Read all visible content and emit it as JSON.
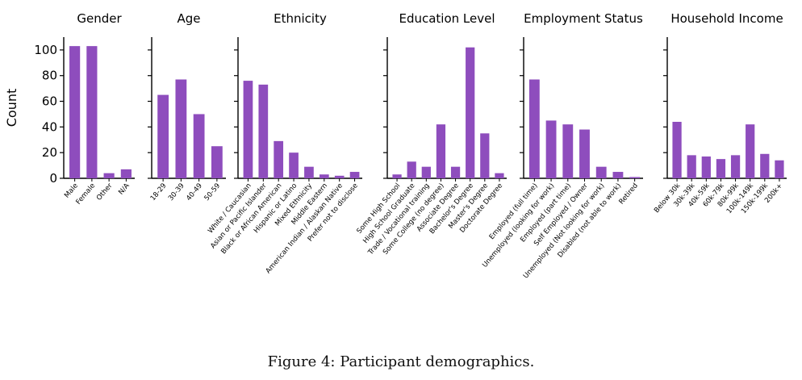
{
  "figure": {
    "caption": "Figure 4: Participant demographics.",
    "bar_color": "#8e4dbd"
  },
  "chart_data": [
    {
      "type": "bar",
      "title": "Gender",
      "ylabel": "Count",
      "ylim": [
        0,
        110
      ],
      "yticks": [
        0,
        20,
        40,
        60,
        80,
        100
      ],
      "categories": [
        "Male",
        "Female",
        "Other",
        "N/A"
      ],
      "values": [
        103,
        103,
        4,
        7
      ]
    },
    {
      "type": "bar",
      "title": "Age",
      "ylim": [
        0,
        110
      ],
      "categories": [
        "18-29",
        "30-39",
        "40-49",
        "50-59"
      ],
      "values": [
        65,
        77,
        50,
        25
      ]
    },
    {
      "type": "bar",
      "title": "Ethnicity",
      "ylim": [
        0,
        110
      ],
      "categories": [
        "White / Caucasian",
        "Asian or Pacific Islander",
        "Black or African American",
        "Hispanic or Latino",
        "Mixed Ethnicity",
        "Middle Eastern",
        "American Indian / Alaskan Native",
        "Prefer not to disclose"
      ],
      "values": [
        76,
        73,
        29,
        20,
        9,
        3,
        2,
        5
      ]
    },
    {
      "type": "bar",
      "title": "Education Level",
      "ylim": [
        0,
        110
      ],
      "categories": [
        "Some High School",
        "High School Graduate",
        "Trade / Vocational training",
        "Some College (no degree)",
        "Associate Degree",
        "Bachelor's Degree",
        "Master's Degree",
        "Doctorate Degree"
      ],
      "values": [
        3,
        13,
        9,
        42,
        9,
        102,
        35,
        4
      ]
    },
    {
      "type": "bar",
      "title": "Employment Status",
      "ylim": [
        0,
        110
      ],
      "categories": [
        "Employed (full time)",
        "Unemployed (looking for work)",
        "Employed (part time)",
        "Self Employed / Owner",
        "Unemployed (Not looking for work)",
        "Disabled (not able to work)",
        "Retired"
      ],
      "values": [
        77,
        45,
        42,
        38,
        9,
        5,
        1
      ]
    },
    {
      "type": "bar",
      "title": "Household Income",
      "ylim": [
        0,
        110
      ],
      "categories": [
        "Below 30k",
        "30k-39k",
        "40k-59k",
        "60k-79k",
        "80k-99k",
        "100k-149k",
        "150k-199k",
        "200k+"
      ],
      "values": [
        44,
        18,
        17,
        15,
        18,
        42,
        19,
        14
      ]
    }
  ]
}
